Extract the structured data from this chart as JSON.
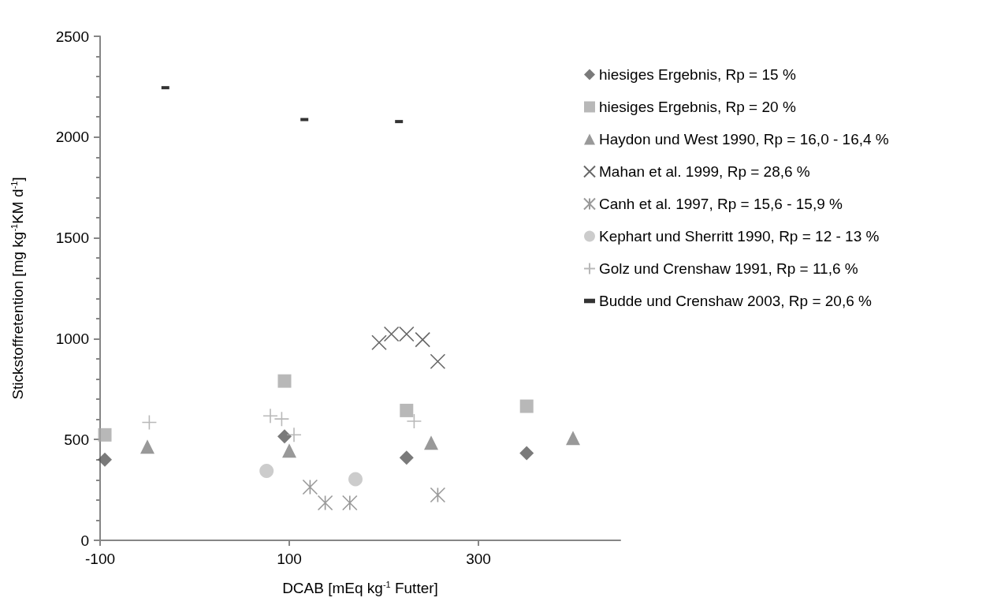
{
  "chart_data": {
    "type": "scatter",
    "xlabel": "DCAB [mEq kg$^{-1}$ Futter]",
    "ylabel": "Stickstoffretention [mg kg$^{-1}$KM d$^{-1}$]",
    "xlim": [
      -100,
      450
    ],
    "xticks": [
      -100,
      100,
      300
    ],
    "ylim": [
      0,
      2500
    ],
    "yticks": [
      0,
      500,
      1000,
      1500,
      2000,
      2500
    ],
    "grid": false,
    "legend": "right",
    "series": [
      {
        "name": "hiesiges Ergebnis, Rp = 15 %",
        "color": "#595959",
        "marker": "diamond",
        "x": [
          -95,
          95,
          224,
          351
        ],
        "values": [
          400,
          515,
          410,
          432
        ]
      },
      {
        "name": "hiesiges Ergebnis, Rp = 20 %",
        "color": "#a6a6a6",
        "marker": "square",
        "x": [
          -95,
          95,
          224,
          351
        ],
        "values": [
          523,
          790,
          644,
          665
        ]
      },
      {
        "name": "Haydon und West 1990, Rp = 16,0 - 16,4 %",
        "color": "#7f7f7f",
        "marker": "triangle",
        "x": [
          -50,
          100,
          250,
          400
        ],
        "values": [
          465,
          445,
          484,
          508
        ]
      },
      {
        "name": "Mahan et al. 1999, Rp = 28,6 %",
        "color": "#404040",
        "marker": "x",
        "x": [
          195,
          208,
          224,
          241,
          257
        ],
        "values": [
          981,
          1023,
          1023,
          995,
          887
        ]
      },
      {
        "name": "Canh et al. 1997, Rp = 15,6 - 15,9 %",
        "color": "#7f7f7f",
        "marker": "cross",
        "x": [
          122,
          138,
          164,
          257
        ],
        "values": [
          264,
          186,
          186,
          225
        ]
      },
      {
        "name": "Kephart und Sherritt 1990, Rp = 12 - 13 %",
        "color": "#bfbfbf",
        "marker": "circle",
        "x": [
          76,
          170
        ],
        "values": [
          344,
          303
        ]
      },
      {
        "name": "Golz und Crenshaw 1991, Rp = 11,6 %",
        "color": "#a6a6a6",
        "marker": "plus",
        "x": [
          -48,
          80,
          92,
          105,
          232
        ],
        "values": [
          585,
          617,
          602,
          523,
          591
        ]
      },
      {
        "name": "Budde und Crenshaw 2003, Rp = 20,6 %",
        "color": "#000000",
        "x": [
          -31,
          116,
          216
        ],
        "values": [
          2245,
          2087,
          2077
        ]
      }
    ]
  }
}
